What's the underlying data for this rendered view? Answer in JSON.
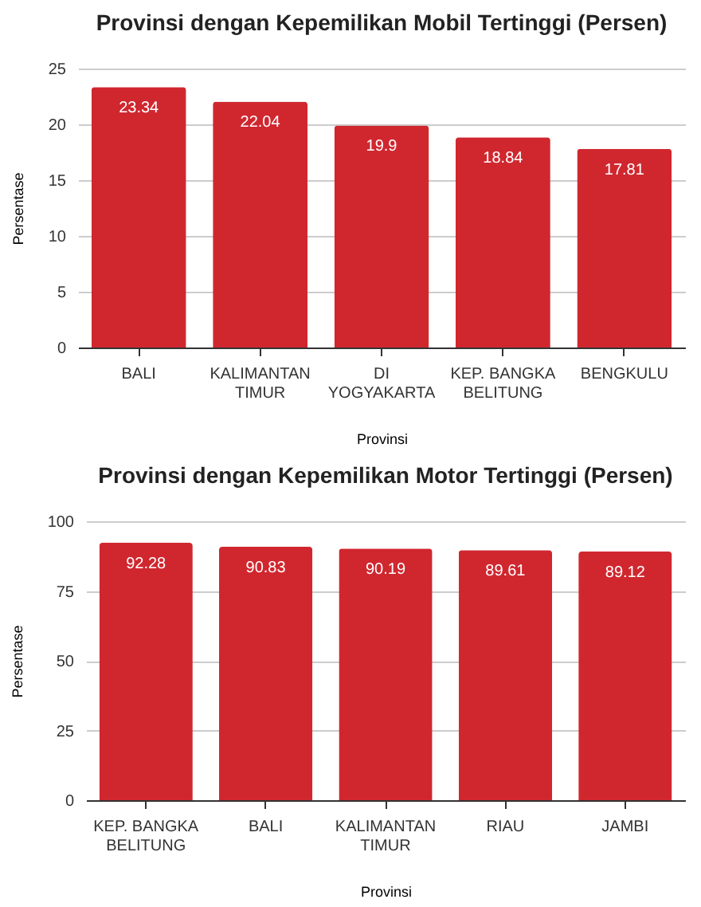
{
  "chart_data": [
    {
      "type": "bar",
      "title": "Provinsi dengan Kepemilikan Mobil Tertinggi (Persen)",
      "xlabel": "Provinsi",
      "ylabel": "Persentase",
      "categories": [
        "BALI",
        "KALIMANTAN TIMUR",
        "DI YOGYAKARTA",
        "KEP. BANGKA BELITUNG",
        "BENGKULU"
      ],
      "values": [
        23.34,
        22.04,
        19.9,
        18.84,
        17.81
      ],
      "color": "#d0272f",
      "ylim": [
        0,
        25
      ],
      "yticks": [
        0,
        5,
        10,
        15,
        20,
        25
      ],
      "grid": "y",
      "data_labels": true
    },
    {
      "type": "bar",
      "title": "Provinsi dengan Kepemilikan Motor Tertinggi (Persen)",
      "xlabel": "Provinsi",
      "ylabel": "Persentase",
      "categories": [
        "KEP. BANGKA BELITUNG",
        "BALI",
        "KALIMANTAN TIMUR",
        "RIAU",
        "JAMBI"
      ],
      "values": [
        92.28,
        90.83,
        90.19,
        89.61,
        89.12
      ],
      "color": "#d0272f",
      "ylim": [
        0,
        100
      ],
      "yticks": [
        0,
        25,
        50,
        75,
        100
      ],
      "grid": "y",
      "data_labels": true
    }
  ]
}
